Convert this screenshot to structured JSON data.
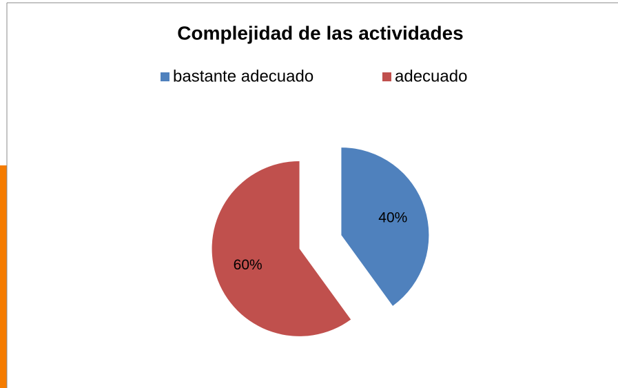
{
  "chart_data": {
    "type": "pie",
    "title": "Complejidad de las actividades",
    "categories": [
      "bastante adecuado",
      "adecuado"
    ],
    "values": [
      40,
      60
    ],
    "value_labels": [
      "40%",
      "60%"
    ],
    "colors": [
      "#4f81bd",
      "#c0504d"
    ],
    "legend": "top"
  }
}
